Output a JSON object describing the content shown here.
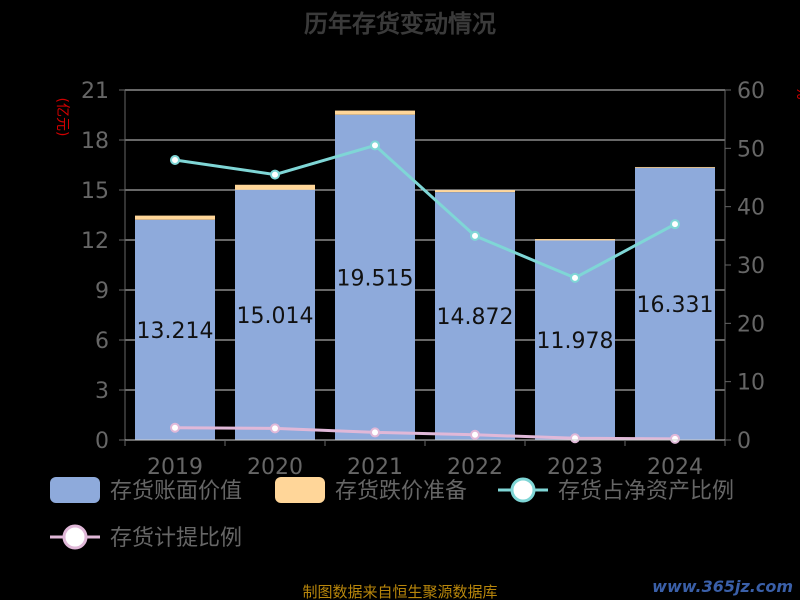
{
  "chart_data": {
    "type": "bar",
    "title": "历年存货变动情况",
    "categories": [
      "2019",
      "2020",
      "2021",
      "2022",
      "2023",
      "2024"
    ],
    "y_left": {
      "label": "(亿元)",
      "ylim": [
        0,
        21
      ],
      "ticks": [
        0,
        3,
        6,
        9,
        12,
        15,
        18,
        21
      ]
    },
    "y_right": {
      "label": "%",
      "ylim": [
        0,
        60
      ],
      "ticks": [
        0,
        10,
        20,
        30,
        40,
        50,
        60
      ]
    },
    "bar_series": [
      {
        "name": "存货账面价值",
        "color": "#8eaadb",
        "values": [
          13.214,
          15.014,
          19.515,
          14.872,
          11.978,
          16.331
        ],
        "show_labels": true
      },
      {
        "name": "存货跌价准备",
        "color": "#ffd699",
        "values": [
          0.25,
          0.3,
          0.25,
          0.12,
          0.08,
          0.05
        ],
        "show_labels": false
      }
    ],
    "line_series": [
      {
        "name": "存货占净资产比例",
        "color": "#7fd6d6",
        "axis": "right",
        "values": [
          48.0,
          45.5,
          50.5,
          35.0,
          27.8,
          37.0
        ]
      },
      {
        "name": "存货计提比例",
        "color": "#e0b8d8",
        "axis": "right",
        "values": [
          2.1,
          2.0,
          1.3,
          0.9,
          0.3,
          0.2
        ]
      }
    ],
    "grid": true,
    "legend_position": "bottom"
  },
  "footer": {
    "source": "制图数据来自恒生聚源数据库",
    "watermark": "www.365jz.com"
  }
}
